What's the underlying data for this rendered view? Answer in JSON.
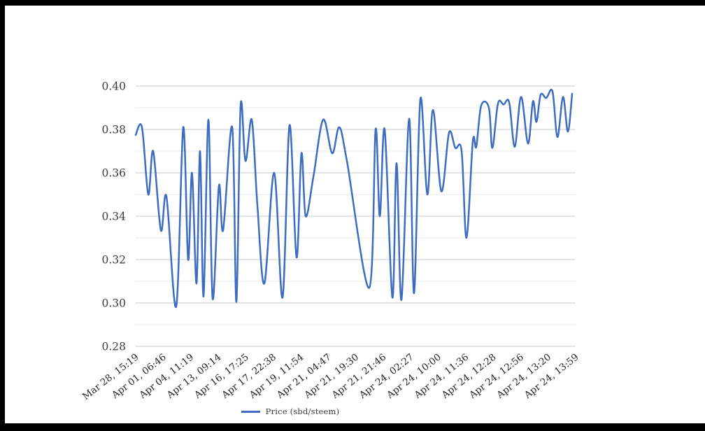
{
  "window": {
    "background": "#ffffff",
    "frame_color": "#000000"
  },
  "chart_data": {
    "type": "line",
    "title": "",
    "xlabel": "",
    "ylabel": "",
    "ylim": [
      0.28,
      0.4
    ],
    "grid": {
      "major_color": "#c9c9c9",
      "minor_color": "#e9e9e9",
      "vertical_gridlines": false
    },
    "line_color": "#3d6cc0",
    "y_tick_labels": [
      "0.40",
      "0.38",
      "0.36",
      "0.34",
      "0.32",
      "0.30",
      "0.28"
    ],
    "y_major_ticks": [
      0.4,
      0.38,
      0.36,
      0.34,
      0.32,
      0.3,
      0.28
    ],
    "y_minor_ticks": [
      0.39,
      0.37,
      0.35,
      0.33,
      0.31,
      0.29
    ],
    "x_tick_labels": [
      "Mar 28, 15:19",
      "Apr 01, 06:46",
      "Apr 04, 11:19",
      "Apr 13, 09:14",
      "Apr 16, 17:25",
      "Apr 17, 22:38",
      "Apr 19, 11:54",
      "Apr 21, 04:47",
      "Apr 21, 19:30",
      "Apr 21, 21:46",
      "Apr 24, 02:27",
      "Apr 24, 10:00",
      "Apr 24, 11:36",
      "Apr 24, 12:28",
      "Apr 24, 12:56",
      "Apr 24, 13:20",
      "Apr 24, 13:59"
    ],
    "legend": {
      "position": "bottom",
      "label": "Price (sbd/steem)"
    },
    "series": [
      {
        "name": "Price (sbd/steem)",
        "color": "#3d6cc0",
        "points": [
          [
            0.0,
            0.3775
          ],
          [
            0.0143,
            0.381
          ],
          [
            0.0286,
            0.35
          ],
          [
            0.0397,
            0.37
          ],
          [
            0.0572,
            0.3335
          ],
          [
            0.07,
            0.349
          ],
          [
            0.0922,
            0.2985
          ],
          [
            0.1081,
            0.381
          ],
          [
            0.1192,
            0.32
          ],
          [
            0.128,
            0.36
          ],
          [
            0.1383,
            0.309
          ],
          [
            0.1463,
            0.37
          ],
          [
            0.1542,
            0.303
          ],
          [
            0.1653,
            0.3845
          ],
          [
            0.1749,
            0.302
          ],
          [
            0.1892,
            0.354
          ],
          [
            0.1987,
            0.3335
          ],
          [
            0.2194,
            0.381
          ],
          [
            0.2289,
            0.3005
          ],
          [
            0.2385,
            0.391
          ],
          [
            0.2496,
            0.3655
          ],
          [
            0.2639,
            0.3845
          ],
          [
            0.2766,
            0.345
          ],
          [
            0.2925,
            0.309
          ],
          [
            0.3148,
            0.36
          ],
          [
            0.3339,
            0.3025
          ],
          [
            0.3497,
            0.382
          ],
          [
            0.3656,
            0.321
          ],
          [
            0.3768,
            0.369
          ],
          [
            0.3863,
            0.34
          ],
          [
            0.4038,
            0.358
          ],
          [
            0.4261,
            0.3845
          ],
          [
            0.4467,
            0.369
          ],
          [
            0.4626,
            0.381
          ],
          [
            0.4801,
            0.3655
          ],
          [
            0.531,
            0.307
          ],
          [
            0.5453,
            0.38
          ],
          [
            0.5549,
            0.34
          ],
          [
            0.566,
            0.38
          ],
          [
            0.5835,
            0.3025
          ],
          [
            0.593,
            0.3645
          ],
          [
            0.6041,
            0.3015
          ],
          [
            0.6216,
            0.385
          ],
          [
            0.6327,
            0.3045
          ],
          [
            0.647,
            0.394
          ],
          [
            0.6629,
            0.35
          ],
          [
            0.6757,
            0.389
          ],
          [
            0.6948,
            0.3515
          ],
          [
            0.7122,
            0.3785
          ],
          [
            0.7265,
            0.3715
          ],
          [
            0.7409,
            0.37
          ],
          [
            0.752,
            0.33
          ],
          [
            0.7663,
            0.3745
          ],
          [
            0.7742,
            0.372
          ],
          [
            0.7854,
            0.391
          ],
          [
            0.8029,
            0.39
          ],
          [
            0.8108,
            0.3715
          ],
          [
            0.8235,
            0.392
          ],
          [
            0.8363,
            0.3915
          ],
          [
            0.849,
            0.3925
          ],
          [
            0.8617,
            0.372
          ],
          [
            0.876,
            0.395
          ],
          [
            0.8919,
            0.3735
          ],
          [
            0.903,
            0.393
          ],
          [
            0.911,
            0.3835
          ],
          [
            0.9205,
            0.396
          ],
          [
            0.9332,
            0.3945
          ],
          [
            0.9475,
            0.3975
          ],
          [
            0.9586,
            0.3765
          ],
          [
            0.9714,
            0.395
          ],
          [
            0.9825,
            0.379
          ],
          [
            0.992,
            0.3965
          ]
        ]
      }
    ]
  }
}
